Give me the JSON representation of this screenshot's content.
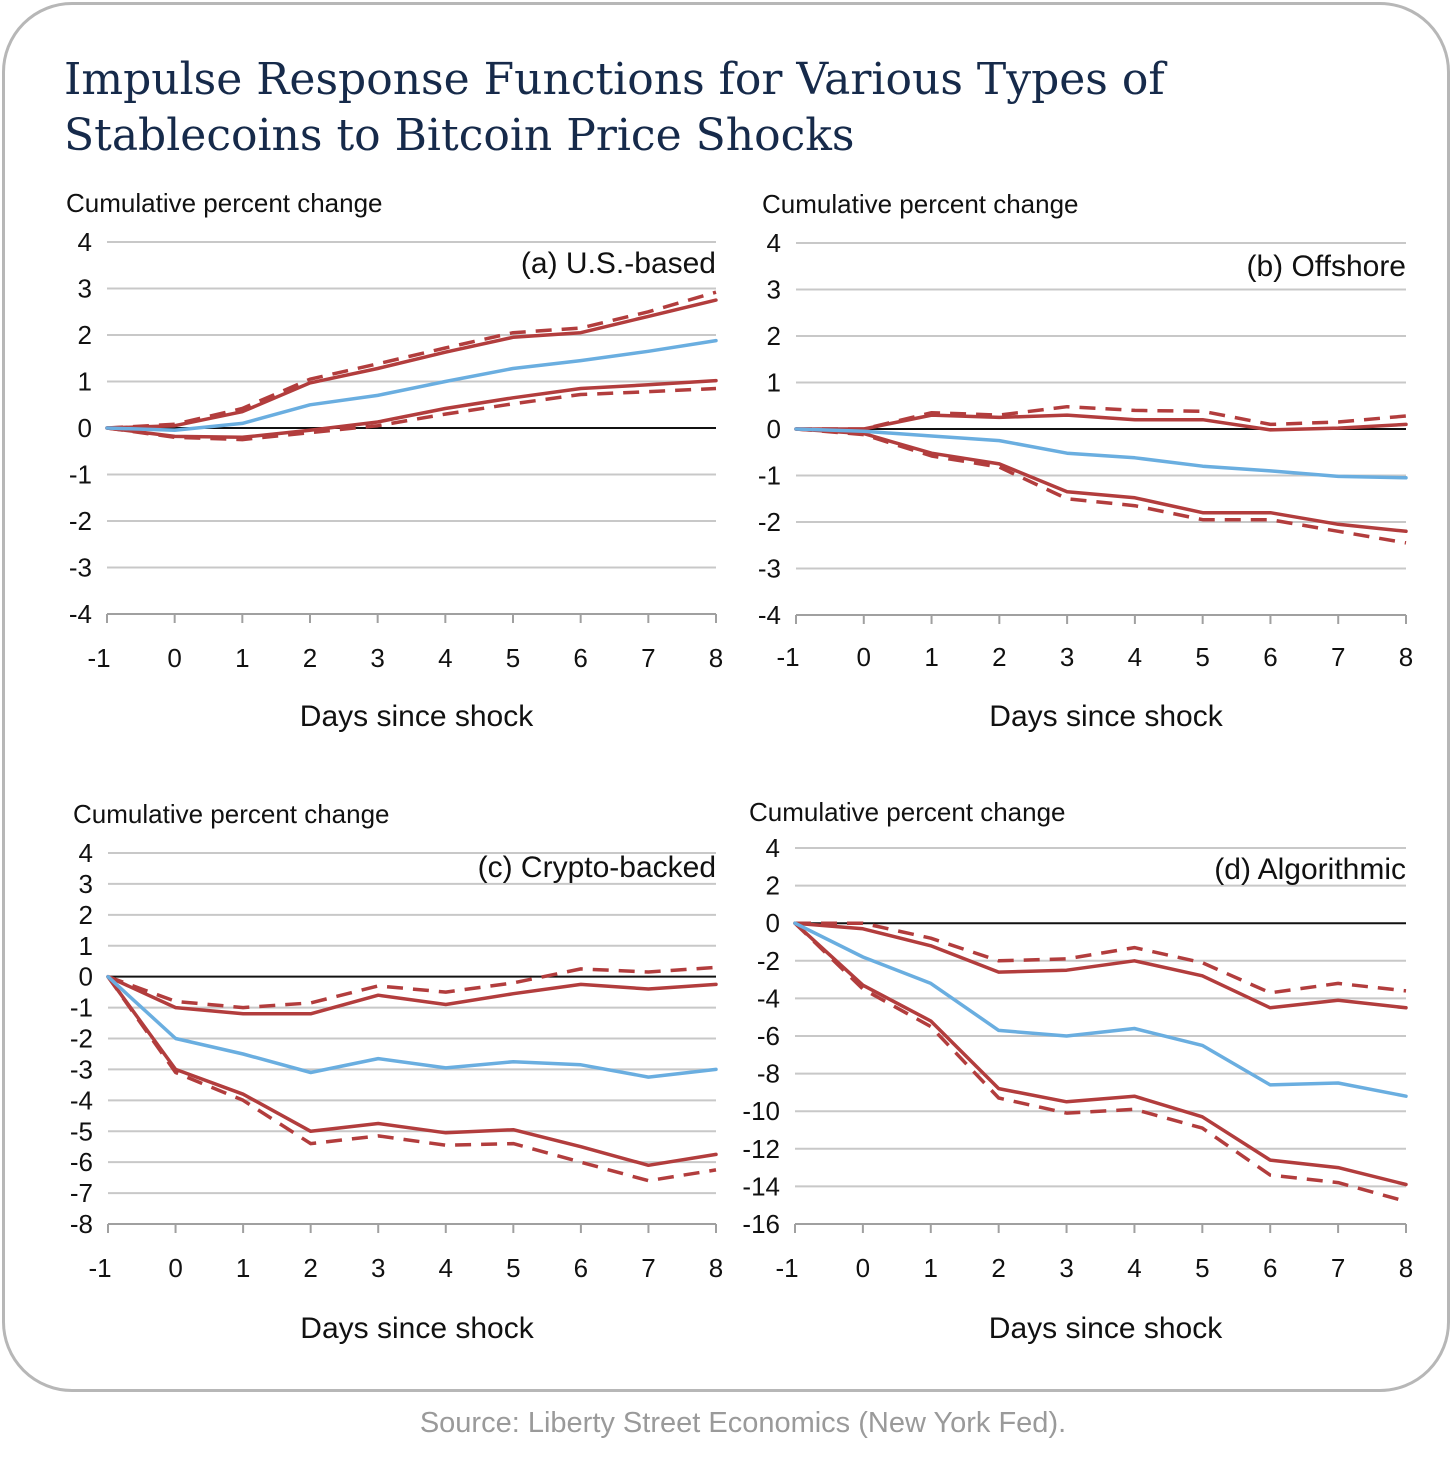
{
  "title": "Impulse Response Functions for Various Types of Stablecoins to Bitcoin Price Shocks",
  "source": "Source: Liberty Street Economics (New York Fed).",
  "colors": {
    "estimate": "#6aaee0",
    "band": "#b23d3d",
    "grid": "#c8c8c8",
    "zero": "#111111"
  },
  "chart_data": [
    {
      "type": "line",
      "label": "(a) U.S.-based",
      "ylabel": "Cumulative percent change",
      "xlabel": "Days since shock",
      "x": [
        -1,
        0,
        1,
        2,
        3,
        4,
        5,
        6,
        7,
        8
      ],
      "ylim": [
        -4,
        4
      ],
      "yticks": [
        4,
        3,
        2,
        1,
        0,
        -1,
        -2,
        -3,
        -4
      ],
      "series": [
        {
          "style": "solid-blue",
          "values": [
            0,
            -0.05,
            0.1,
            0.5,
            0.7,
            1.0,
            1.28,
            1.45,
            1.65,
            1.88
          ]
        },
        {
          "style": "solid-red",
          "values": [
            0,
            0.05,
            0.35,
            0.97,
            1.28,
            1.63,
            1.95,
            2.05,
            2.4,
            2.75
          ]
        },
        {
          "style": "dashed-red",
          "values": [
            0,
            0.08,
            0.42,
            1.05,
            1.38,
            1.72,
            2.05,
            2.15,
            2.5,
            2.92
          ]
        },
        {
          "style": "solid-red",
          "values": [
            0,
            -0.18,
            -0.2,
            -0.05,
            0.13,
            0.42,
            0.65,
            0.85,
            0.93,
            1.02
          ]
        },
        {
          "style": "dashed-red",
          "values": [
            0,
            -0.2,
            -0.25,
            -0.1,
            0.05,
            0.3,
            0.52,
            0.72,
            0.78,
            0.85
          ]
        }
      ]
    },
    {
      "type": "line",
      "label": "(b) Offshore",
      "ylabel": "Cumulative percent change",
      "xlabel": "Days since shock",
      "x": [
        -1,
        0,
        1,
        2,
        3,
        4,
        5,
        6,
        7,
        8
      ],
      "ylim": [
        -4,
        4
      ],
      "yticks": [
        4,
        3,
        2,
        1,
        0,
        -1,
        -2,
        -3,
        -4
      ],
      "series": [
        {
          "style": "solid-blue",
          "values": [
            0,
            -0.05,
            -0.15,
            -0.25,
            -0.52,
            -0.62,
            -0.8,
            -0.9,
            -1.02,
            -1.05
          ]
        },
        {
          "style": "solid-red",
          "values": [
            0,
            0.0,
            0.3,
            0.25,
            0.3,
            0.2,
            0.2,
            -0.02,
            0.02,
            0.1
          ]
        },
        {
          "style": "dashed-red",
          "values": [
            0,
            0.0,
            0.35,
            0.3,
            0.48,
            0.4,
            0.38,
            0.1,
            0.15,
            0.28
          ]
        },
        {
          "style": "solid-red",
          "values": [
            0,
            -0.1,
            -0.52,
            -0.75,
            -1.35,
            -1.48,
            -1.8,
            -1.8,
            -2.05,
            -2.2
          ]
        },
        {
          "style": "dashed-red",
          "values": [
            0,
            -0.12,
            -0.58,
            -0.82,
            -1.5,
            -1.65,
            -1.95,
            -1.95,
            -2.2,
            -2.45
          ]
        }
      ]
    },
    {
      "type": "line",
      "label": "(c) Crypto-backed",
      "ylabel": "Cumulative percent change",
      "xlabel": "Days since shock",
      "x": [
        -1,
        0,
        1,
        2,
        3,
        4,
        5,
        6,
        7,
        8
      ],
      "ylim": [
        -8,
        4
      ],
      "yticks": [
        4,
        3,
        2,
        1,
        0,
        -1,
        -2,
        -3,
        -4,
        -5,
        -6,
        -7,
        -8
      ],
      "series": [
        {
          "style": "solid-blue",
          "values": [
            0,
            -2.0,
            -2.5,
            -3.1,
            -2.65,
            -2.95,
            -2.75,
            -2.85,
            -3.25,
            -3.0
          ]
        },
        {
          "style": "solid-red",
          "values": [
            0,
            -1.0,
            -1.2,
            -1.2,
            -0.6,
            -0.9,
            -0.55,
            -0.25,
            -0.4,
            -0.25
          ]
        },
        {
          "style": "dashed-red",
          "values": [
            0,
            -0.8,
            -1.0,
            -0.85,
            -0.3,
            -0.5,
            -0.2,
            0.25,
            0.15,
            0.3
          ]
        },
        {
          "style": "solid-red",
          "values": [
            0,
            -3.0,
            -3.8,
            -5.0,
            -4.75,
            -5.05,
            -4.95,
            -5.5,
            -6.1,
            -5.75
          ]
        },
        {
          "style": "dashed-red",
          "values": [
            0,
            -3.1,
            -4.0,
            -5.4,
            -5.15,
            -5.45,
            -5.4,
            -6.0,
            -6.6,
            -6.25
          ]
        }
      ]
    },
    {
      "type": "line",
      "label": "(d) Algorithmic",
      "ylabel": "Cumulative percent change",
      "xlabel": "Days since shock",
      "x": [
        -1,
        0,
        1,
        2,
        3,
        4,
        5,
        6,
        7,
        8
      ],
      "ylim": [
        -16,
        4
      ],
      "yticks": [
        4,
        2,
        0,
        -2,
        -4,
        -6,
        -8,
        -10,
        -12,
        -14,
        -16
      ],
      "series": [
        {
          "style": "solid-blue",
          "values": [
            0,
            -1.8,
            -3.2,
            -5.7,
            -6.0,
            -5.6,
            -6.5,
            -8.6,
            -8.5,
            -9.2
          ]
        },
        {
          "style": "solid-red",
          "values": [
            0,
            -0.3,
            -1.2,
            -2.6,
            -2.5,
            -2.0,
            -2.8,
            -4.5,
            -4.1,
            -4.5
          ]
        },
        {
          "style": "dashed-red",
          "values": [
            0,
            0.0,
            -0.8,
            -2.0,
            -1.9,
            -1.3,
            -2.1,
            -3.7,
            -3.2,
            -3.6
          ]
        },
        {
          "style": "solid-red",
          "values": [
            0,
            -3.3,
            -5.2,
            -8.8,
            -9.5,
            -9.2,
            -10.3,
            -12.6,
            -13.0,
            -13.9
          ]
        },
        {
          "style": "dashed-red",
          "values": [
            0,
            -3.5,
            -5.5,
            -9.3,
            -10.1,
            -9.9,
            -10.9,
            -13.4,
            -13.8,
            -14.8
          ]
        }
      ]
    }
  ]
}
